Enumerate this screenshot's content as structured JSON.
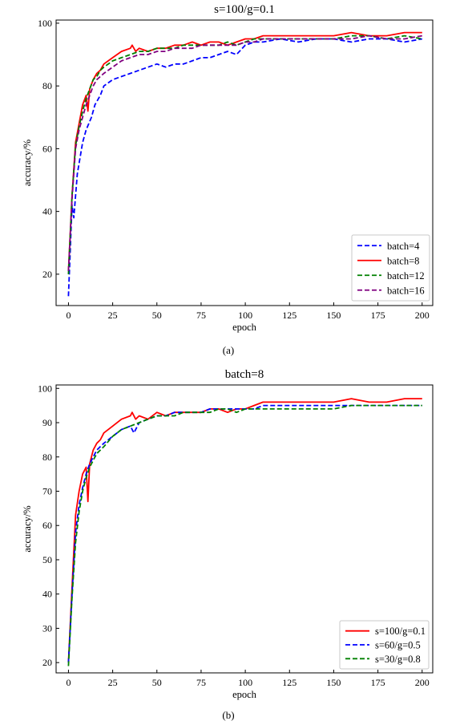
{
  "chart_data": [
    {
      "type": "line",
      "title": "s=100/g=0.1",
      "xlabel": "epoch",
      "ylabel": "accuracy/%",
      "caption": "(a)",
      "xlim": [
        -7,
        206
      ],
      "ylim": [
        10,
        101
      ],
      "xticks": [
        0,
        25,
        50,
        75,
        100,
        125,
        150,
        175,
        200
      ],
      "yticks": [
        20,
        40,
        60,
        80,
        100
      ],
      "grid": false,
      "legend_position": "bottom-right",
      "series": [
        {
          "name": "batch=4",
          "color": "#0000ff",
          "dash": "dashed",
          "x": [
            0,
            2,
            3,
            5,
            8,
            10,
            13,
            15,
            18,
            20,
            25,
            30,
            35,
            40,
            45,
            50,
            55,
            60,
            65,
            70,
            75,
            80,
            85,
            90,
            95,
            100,
            105,
            110,
            120,
            130,
            140,
            150,
            160,
            170,
            180,
            190,
            200
          ],
          "y": [
            13,
            42,
            38,
            52,
            62,
            66,
            70,
            74,
            77,
            80,
            82,
            83,
            84,
            85,
            86,
            87,
            86,
            87,
            87,
            88,
            89,
            89,
            90,
            91,
            90,
            93,
            94,
            94,
            95,
            94,
            95,
            95,
            94,
            95,
            95,
            94,
            95
          ]
        },
        {
          "name": "batch=8",
          "color": "#ff0000",
          "dash": "solid",
          "x": [
            0,
            2,
            4,
            6,
            8,
            10,
            11,
            12,
            14,
            16,
            18,
            20,
            25,
            30,
            35,
            36,
            38,
            40,
            45,
            50,
            55,
            60,
            65,
            70,
            75,
            80,
            85,
            90,
            95,
            100,
            105,
            110,
            120,
            130,
            140,
            150,
            160,
            170,
            180,
            190,
            200
          ],
          "y": [
            21,
            45,
            62,
            68,
            74,
            77,
            72,
            79,
            82,
            84,
            85,
            87,
            89,
            91,
            92,
            93,
            91,
            92,
            91,
            92,
            92,
            93,
            93,
            94,
            93,
            94,
            94,
            93,
            94,
            95,
            95,
            96,
            96,
            96,
            96,
            96,
            97,
            96,
            96,
            97,
            97
          ]
        },
        {
          "name": "batch=12",
          "color": "#008000",
          "dash": "dashed",
          "x": [
            0,
            2,
            4,
            6,
            8,
            10,
            12,
            14,
            16,
            18,
            20,
            25,
            30,
            35,
            40,
            45,
            50,
            55,
            60,
            65,
            70,
            75,
            80,
            85,
            90,
            95,
            100,
            105,
            110,
            120,
            130,
            140,
            150,
            160,
            170,
            180,
            190,
            200
          ],
          "y": [
            20,
            45,
            61,
            67,
            72,
            76,
            79,
            82,
            83,
            85,
            86,
            88,
            89,
            90,
            91,
            91,
            92,
            92,
            92,
            93,
            93,
            93,
            93,
            93,
            94,
            93,
            94,
            95,
            95,
            95,
            95,
            95,
            95,
            96,
            96,
            95,
            96,
            95
          ]
        },
        {
          "name": "batch=16",
          "color": "#800080",
          "dash": "dashed",
          "x": [
            0,
            2,
            4,
            6,
            8,
            10,
            12,
            14,
            16,
            18,
            20,
            25,
            30,
            35,
            40,
            45,
            50,
            55,
            60,
            65,
            70,
            75,
            80,
            85,
            90,
            95,
            100,
            105,
            110,
            120,
            130,
            140,
            150,
            160,
            170,
            180,
            190,
            200
          ],
          "y": [
            21,
            44,
            60,
            66,
            70,
            74,
            77,
            80,
            82,
            83,
            84,
            86,
            88,
            89,
            90,
            90,
            91,
            91,
            92,
            92,
            92,
            93,
            93,
            93,
            93,
            93,
            94,
            94,
            95,
            95,
            95,
            95,
            95,
            95,
            96,
            95,
            95,
            96
          ]
        }
      ]
    },
    {
      "type": "line",
      "title": "batch=8",
      "xlabel": "epoch",
      "ylabel": "accuracy/%",
      "caption": "(b)",
      "xlim": [
        -7,
        206
      ],
      "ylim": [
        17,
        101
      ],
      "xticks": [
        0,
        25,
        50,
        75,
        100,
        125,
        150,
        175,
        200
      ],
      "yticks": [
        20,
        30,
        40,
        50,
        60,
        70,
        80,
        90,
        100
      ],
      "grid": false,
      "legend_position": "bottom-right",
      "series": [
        {
          "name": "s=100/g=0.1",
          "color": "#ff0000",
          "dash": "solid",
          "x": [
            0,
            2,
            4,
            6,
            8,
            10,
            11,
            12,
            14,
            16,
            18,
            20,
            25,
            30,
            35,
            36,
            38,
            40,
            45,
            50,
            55,
            60,
            65,
            70,
            75,
            80,
            85,
            90,
            95,
            100,
            105,
            110,
            120,
            130,
            140,
            150,
            160,
            170,
            180,
            190,
            200
          ],
          "y": [
            20,
            42,
            63,
            70,
            75,
            77,
            67,
            78,
            82,
            84,
            85,
            87,
            89,
            91,
            92,
            93,
            91,
            92,
            91,
            93,
            92,
            93,
            93,
            93,
            93,
            94,
            94,
            93,
            94,
            94,
            95,
            96,
            96,
            96,
            96,
            96,
            97,
            96,
            96,
            97,
            97
          ]
        },
        {
          "name": "s=60/g=0.5",
          "color": "#0000ff",
          "dash": "dashed",
          "x": [
            0,
            2,
            4,
            6,
            8,
            10,
            12,
            14,
            16,
            18,
            20,
            25,
            30,
            35,
            37,
            40,
            45,
            50,
            55,
            60,
            65,
            70,
            75,
            80,
            85,
            90,
            95,
            100,
            105,
            110,
            120,
            130,
            140,
            150,
            160,
            170,
            180,
            190,
            200
          ],
          "y": [
            20,
            40,
            58,
            66,
            71,
            75,
            78,
            80,
            82,
            83,
            84,
            86,
            88,
            89,
            87,
            90,
            91,
            92,
            92,
            93,
            93,
            93,
            93,
            94,
            94,
            94,
            94,
            94,
            94,
            95,
            95,
            95,
            95,
            95,
            95,
            95,
            95,
            95,
            95
          ]
        },
        {
          "name": "s=30/g=0.8",
          "color": "#008000",
          "dash": "dashed",
          "x": [
            0,
            2,
            4,
            6,
            8,
            10,
            12,
            14,
            16,
            18,
            20,
            25,
            30,
            35,
            40,
            45,
            50,
            55,
            60,
            65,
            70,
            75,
            80,
            85,
            90,
            95,
            100,
            105,
            110,
            120,
            130,
            140,
            150,
            160,
            170,
            180,
            190,
            200
          ],
          "y": [
            19,
            39,
            55,
            64,
            70,
            74,
            77,
            79,
            81,
            82,
            83,
            86,
            88,
            89,
            90,
            91,
            92,
            92,
            92,
            93,
            93,
            93,
            93,
            94,
            94,
            93,
            94,
            94,
            94,
            94,
            94,
            94,
            94,
            95,
            95,
            95,
            95,
            95
          ]
        }
      ]
    }
  ]
}
